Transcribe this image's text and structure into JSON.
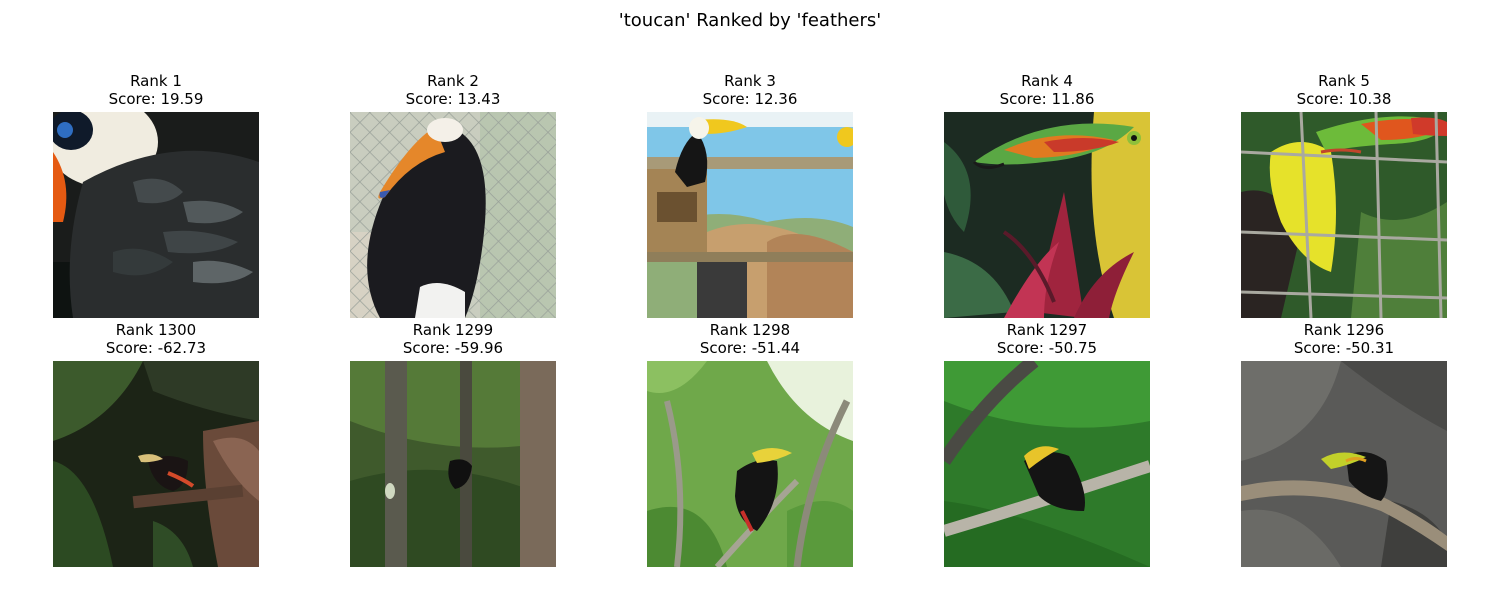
{
  "figure": {
    "title": "'toucan' Ranked by 'feathers'"
  },
  "top_row": [
    {
      "rank_label": "Rank 1",
      "score_label": "Score: 19.59",
      "image": "toucan-closeup-black-feathers"
    },
    {
      "rank_label": "Rank 2",
      "score_label": "Score: 13.43",
      "image": "toucan-behind-chain-fence"
    },
    {
      "rank_label": "Rank 3",
      "score_label": "Score: 12.36",
      "image": "toucan-on-perch-mural-wall"
    },
    {
      "rank_label": "Rank 4",
      "score_label": "Score: 11.86",
      "image": "keel-billed-toucan-painting-foliage"
    },
    {
      "rank_label": "Rank 5",
      "score_label": "Score: 10.38",
      "image": "toucan-behind-wire-grid"
    }
  ],
  "bottom_row": [
    {
      "rank_label": "Rank 1300",
      "score_label": "Score: -62.73",
      "image": "toucan-in-dark-forest"
    },
    {
      "rank_label": "Rank 1299",
      "score_label": "Score: -59.96",
      "image": "distant-bird-in-tree-trunks"
    },
    {
      "rank_label": "Rank 1298",
      "score_label": "Score: -51.44",
      "image": "toucan-in-leafy-branches"
    },
    {
      "rank_label": "Rank 1297",
      "score_label": "Score: -50.75",
      "image": "toucan-on-branch-green-foliage"
    },
    {
      "rank_label": "Rank 1296",
      "score_label": "Score: -50.31",
      "image": "toucan-on-rock-ledge"
    }
  ]
}
